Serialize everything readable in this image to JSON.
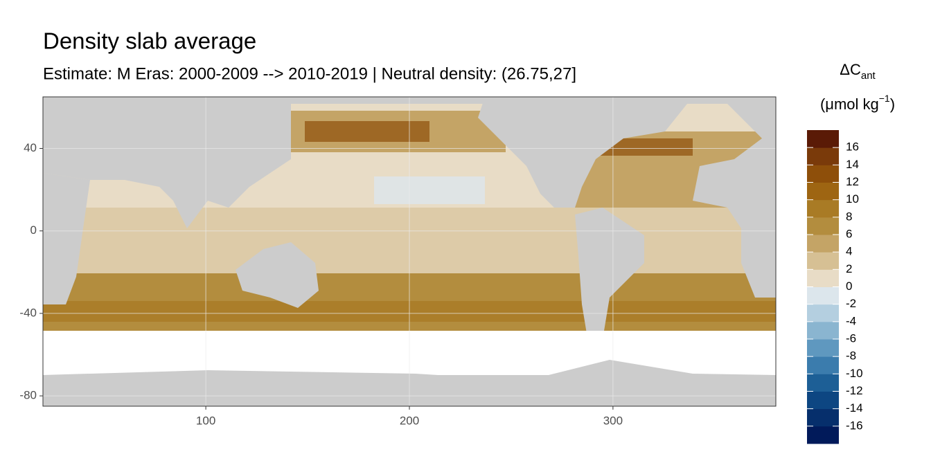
{
  "chart_data": {
    "type": "raster-map",
    "title": "Density slab average",
    "subtitle": "Estimate: M Eras: 2000-2009 --> 2010-2019 | Neutral density: (26.75,27]",
    "xlim": [
      20,
      380
    ],
    "ylim": [
      -85,
      65
    ],
    "xticks": [
      100,
      200,
      300
    ],
    "yticks": [
      -80,
      -40,
      0,
      40
    ],
    "grid": true,
    "legend": {
      "title": "ΔC",
      "title_subscript": "ant",
      "unit": "(μmol kg",
      "unit_superscript": "−1",
      "unit_close": ")",
      "lim": [
        -18,
        18
      ],
      "ticks": [
        -16,
        -14,
        -12,
        -10,
        -8,
        -6,
        -4,
        -2,
        0,
        2,
        4,
        6,
        8,
        10,
        12,
        14,
        16
      ],
      "colors": [
        "#011a5a",
        "#062f6c",
        "#0d4682",
        "#1d5f96",
        "#3b7cad",
        "#5f98bf",
        "#8ab5d0",
        "#b4cfe0",
        "#dce6ec",
        "#e8dcc6",
        "#d6c094",
        "#c4a466",
        "#b38d3e",
        "#a97b25",
        "#9e6512",
        "#8e4f0a",
        "#7a3a0a",
        "#5a1a06"
      ]
    }
  }
}
